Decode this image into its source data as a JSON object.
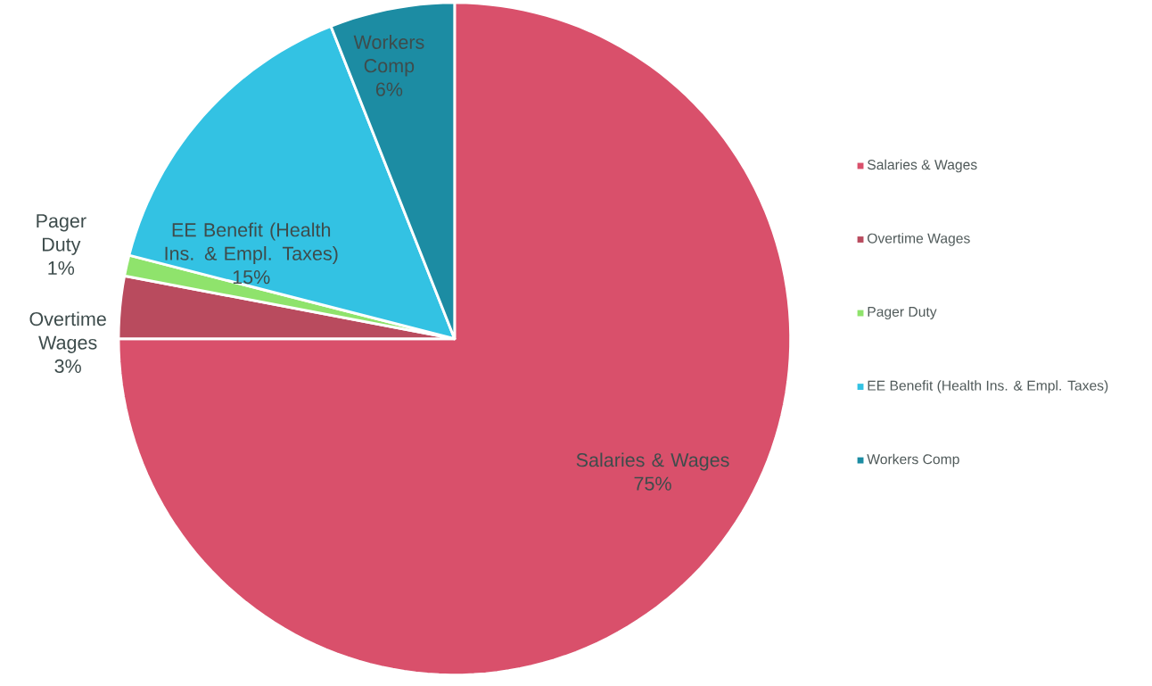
{
  "chart_data": {
    "type": "pie",
    "categories": [
      "Salaries & Wages",
      "Overtime Wages",
      "Pager Duty",
      "EE Benefit (Health Ins. & Empl. Taxes)",
      "Workers Comp"
    ],
    "values": [
      75,
      3,
      1,
      15,
      6
    ],
    "value_labels": [
      "75%",
      "3%",
      "1%",
      "15%",
      "6%"
    ],
    "colors": [
      "#d9506b",
      "#b94b5e",
      "#8fe36c",
      "#33c2e3",
      "#1c8ca3"
    ],
    "legend": "right"
  }
}
